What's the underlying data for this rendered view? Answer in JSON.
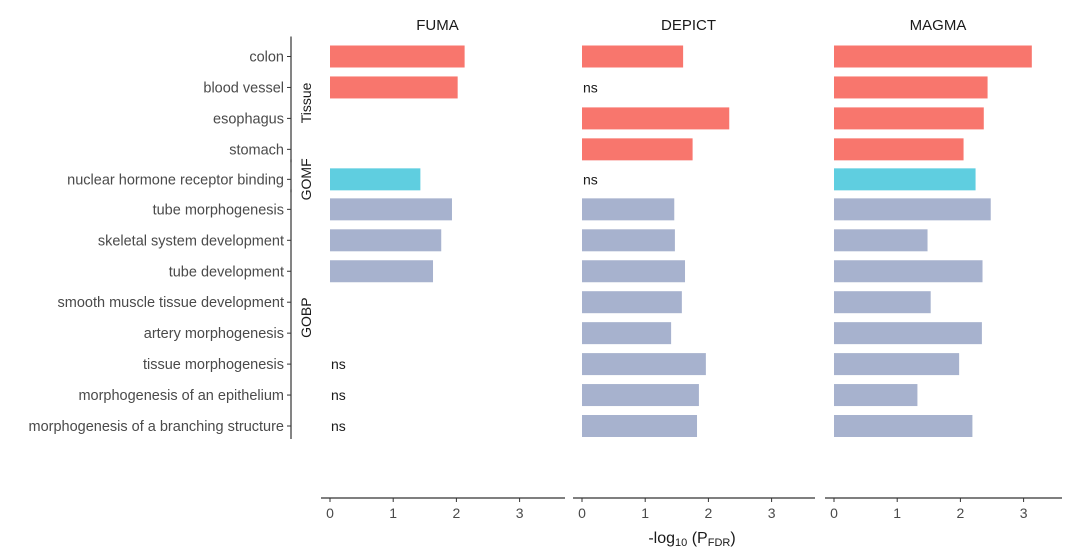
{
  "chart_data": {
    "type": "bar",
    "orientation": "horizontal",
    "xlabel": "-log10 (PFDR)",
    "xlabel_parts": {
      "prefix": "-log",
      "sub1": "10",
      "mid": " (P",
      "sub2": "FDR",
      "suffix": ")"
    },
    "xlim": [
      0,
      3.3
    ],
    "x_ticks": [
      0,
      1,
      2,
      3
    ],
    "grid": false,
    "legend": "none",
    "colors": {
      "Tissue": "#F8766D",
      "GOMF": "#5FCEE0",
      "GOBP": "#A7B2CE"
    },
    "groups": [
      {
        "name": "Tissue",
        "categories": [
          "colon",
          "blood vessel",
          "esophagus",
          "stomach"
        ]
      },
      {
        "name": "GOMF",
        "categories": [
          "nuclear hormone receptor binding"
        ]
      },
      {
        "name": "GOBP",
        "categories": [
          "tube morphogenesis",
          "skeletal system development",
          "tube development",
          "smooth muscle tissue development",
          "artery morphogenesis",
          "tissue morphogenesis",
          "morphogenesis of an epithelium",
          "morphogenesis of a branching structure"
        ]
      }
    ],
    "panels": [
      {
        "title": "FUMA",
        "values": {
          "colon": 2.13,
          "blood vessel": 2.02,
          "nuclear hormone receptor binding": 1.43,
          "tube morphogenesis": 1.93,
          "skeletal system development": 1.76,
          "tube development": 1.63
        },
        "ns": [
          "tissue morphogenesis",
          "morphogenesis of an epithelium",
          "morphogenesis of a branching structure"
        ]
      },
      {
        "title": "DEPICT",
        "values": {
          "colon": 1.6,
          "esophagus": 2.33,
          "stomach": 1.75,
          "tube morphogenesis": 1.46,
          "skeletal system development": 1.47,
          "tube development": 1.63,
          "smooth muscle tissue development": 1.58,
          "artery morphogenesis": 1.41,
          "tissue morphogenesis": 1.96,
          "morphogenesis of an epithelium": 1.85,
          "morphogenesis of a branching structure": 1.82
        },
        "ns": [
          "blood vessel",
          "nuclear hormone receptor binding"
        ]
      },
      {
        "title": "MAGMA",
        "values": {
          "colon": 3.13,
          "blood vessel": 2.43,
          "esophagus": 2.37,
          "stomach": 2.05,
          "nuclear hormone receptor binding": 2.24,
          "tube morphogenesis": 2.48,
          "skeletal system development": 1.48,
          "tube development": 2.35,
          "smooth muscle tissue development": 1.53,
          "artery morphogenesis": 2.34,
          "tissue morphogenesis": 1.98,
          "morphogenesis of an epithelium": 1.32,
          "morphogenesis of a branching structure": 2.19
        },
        "ns": []
      }
    ]
  }
}
